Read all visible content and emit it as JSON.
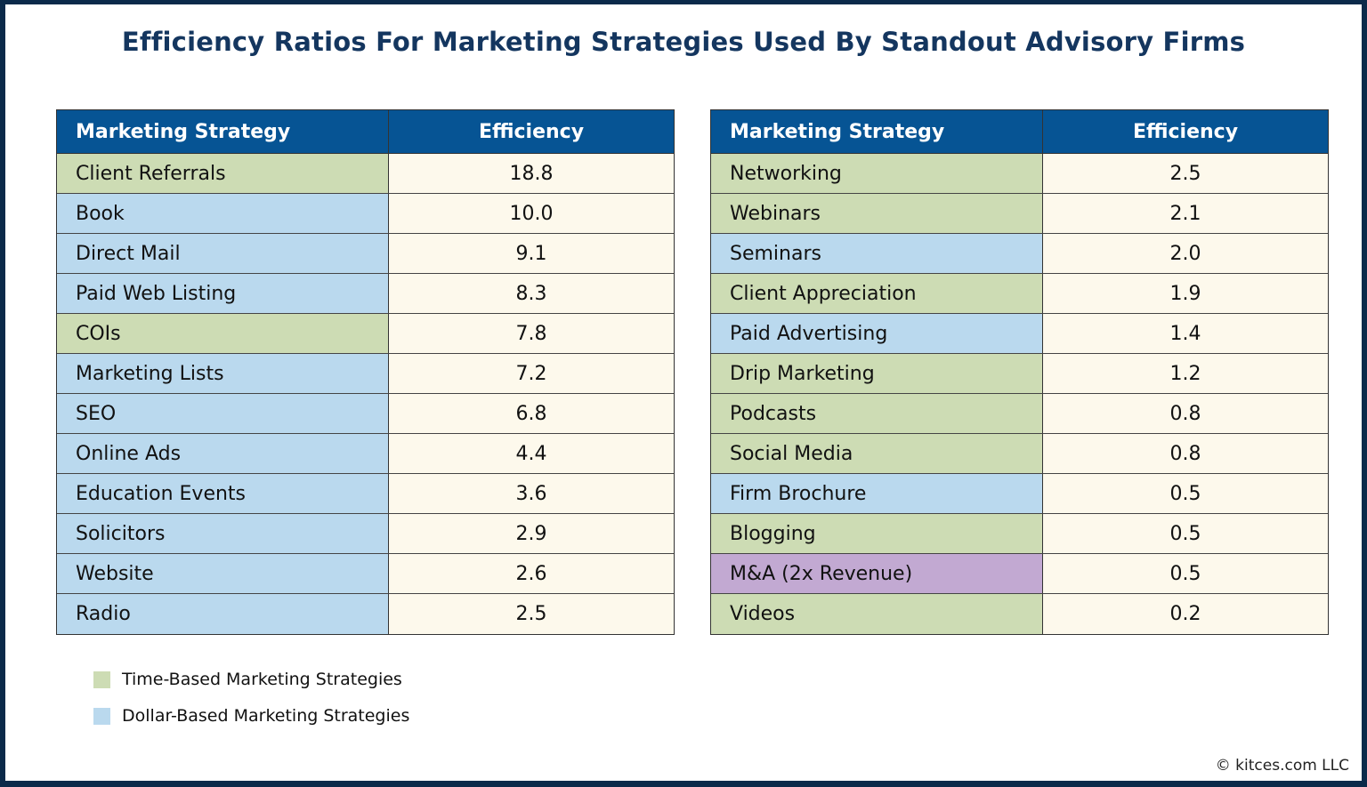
{
  "title": "Efficiency Ratios For Marketing Strategies Used By Standout Advisory Firms",
  "colors": {
    "header": "#065494",
    "time": "#cddcb4",
    "dollar": "#bad9ee",
    "ma": "#c2a9d2",
    "value_bg": "#fdf9ec",
    "frame": "#0b2a4a"
  },
  "chart_data": {
    "type": "table",
    "title": "Efficiency Ratios For Marketing Strategies Used By Standout Advisory Firms",
    "columns": [
      "Marketing Strategy",
      "Efficiency"
    ],
    "tables": [
      {
        "rows": [
          {
            "strategy": "Client Referrals",
            "efficiency": "18.8",
            "type": "time"
          },
          {
            "strategy": "Book",
            "efficiency": "10.0",
            "type": "dollar"
          },
          {
            "strategy": "Direct Mail",
            "efficiency": "9.1",
            "type": "dollar"
          },
          {
            "strategy": "Paid Web Listing",
            "efficiency": "8.3",
            "type": "dollar"
          },
          {
            "strategy": "COIs",
            "efficiency": "7.8",
            "type": "time"
          },
          {
            "strategy": "Marketing Lists",
            "efficiency": "7.2",
            "type": "dollar"
          },
          {
            "strategy": "SEO",
            "efficiency": "6.8",
            "type": "dollar"
          },
          {
            "strategy": "Online Ads",
            "efficiency": "4.4",
            "type": "dollar"
          },
          {
            "strategy": "Education Events",
            "efficiency": "3.6",
            "type": "dollar"
          },
          {
            "strategy": "Solicitors",
            "efficiency": "2.9",
            "type": "dollar"
          },
          {
            "strategy": "Website",
            "efficiency": "2.6",
            "type": "dollar"
          },
          {
            "strategy": "Radio",
            "efficiency": "2.5",
            "type": "dollar"
          }
        ]
      },
      {
        "rows": [
          {
            "strategy": "Networking",
            "efficiency": "2.5",
            "type": "time"
          },
          {
            "strategy": "Webinars",
            "efficiency": "2.1",
            "type": "time"
          },
          {
            "strategy": "Seminars",
            "efficiency": "2.0",
            "type": "dollar"
          },
          {
            "strategy": "Client Appreciation",
            "efficiency": "1.9",
            "type": "time"
          },
          {
            "strategy": "Paid Advertising",
            "efficiency": "1.4",
            "type": "dollar"
          },
          {
            "strategy": "Drip Marketing",
            "efficiency": "1.2",
            "type": "time"
          },
          {
            "strategy": "Podcasts",
            "efficiency": "0.8",
            "type": "time"
          },
          {
            "strategy": "Social Media",
            "efficiency": "0.8",
            "type": "time"
          },
          {
            "strategy": "Firm Brochure",
            "efficiency": "0.5",
            "type": "dollar"
          },
          {
            "strategy": "Blogging",
            "efficiency": "0.5",
            "type": "time"
          },
          {
            "strategy": "M&A (2x Revenue)",
            "efficiency": "0.5",
            "type": "ma"
          },
          {
            "strategy": "Videos",
            "efficiency": "0.2",
            "type": "time"
          }
        ]
      }
    ],
    "legend": [
      {
        "label": "Time-Based Marketing Strategies",
        "type": "time"
      },
      {
        "label": "Dollar-Based Marketing Strategies",
        "type": "dollar"
      }
    ]
  },
  "footer": {
    "copyright": "© kitces.com LLC"
  }
}
